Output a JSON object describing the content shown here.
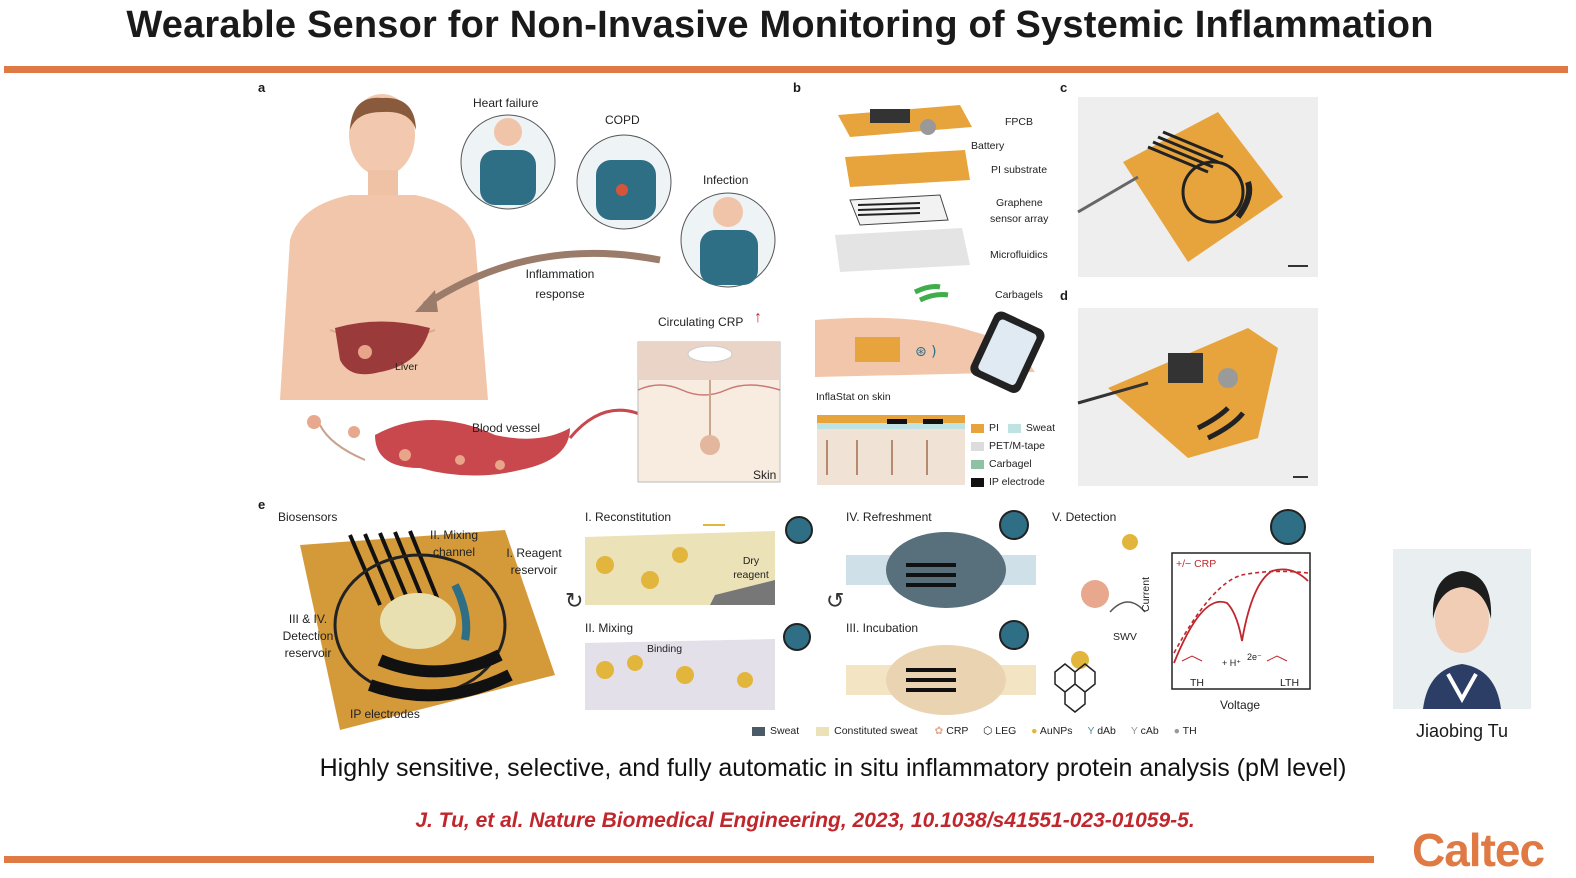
{
  "slide": {
    "title": "Wearable Sensor for Non-Invasive Monitoring of Systemic Inflammation",
    "subtitle": "Highly sensitive, selective, and fully automatic in situ inflammatory protein analysis (pM level)",
    "citation": "J. Tu, et al. Nature Biomedical Engineering, 2023, 10.1038/s41551-023-01059-5.",
    "logo": "Caltec",
    "presenter": "Jiaobing Tu"
  },
  "colors": {
    "accent": "#e07a45",
    "citation": "#c0272d",
    "sensor": "#e8a43c",
    "teal": "#2f6f86"
  },
  "panel_a": {
    "letter": "a",
    "heart_failure": "Heart failure",
    "copd": "COPD",
    "infection": "Infection",
    "inflammation_1": "Inflammation",
    "inflammation_2": "response",
    "liver": "Liver",
    "circulating": "Circulating CRP",
    "blood_vessel": "Blood vessel",
    "skin": "Skin"
  },
  "panel_b": {
    "letter": "b",
    "fpcb": "FPCB",
    "battery": "Battery",
    "pi_substrate": "PI substrate",
    "graphene_1": "Graphene",
    "graphene_2": "sensor array",
    "microfluidics": "Microfluidics",
    "carbagels": "Carbagels",
    "inflastat": "InflaStat on skin",
    "legend": [
      "PI",
      "Sweat",
      "PET/M-tape",
      "Carbagel",
      "IP electrode"
    ]
  },
  "panel_c": {
    "letter": "c"
  },
  "panel_d": {
    "letter": "d"
  },
  "panel_e": {
    "letter": "e",
    "biosensors": "Biosensors",
    "mixing_channel_1": "II. Mixing",
    "mixing_channel_2": "channel",
    "reagent_1": "I. Reagent",
    "reagent_2": "reservoir",
    "detection_1": "III & IV.",
    "detection_2": "Detection",
    "detection_3": "reservoir",
    "ip_electrodes": "IP electrodes",
    "reconstitution": "I. Reconstitution",
    "dry_1": "Dry",
    "dry_2": "reagent",
    "mixing": "II. Mixing",
    "binding": "Binding",
    "refreshment": "IV. Refreshment",
    "incubation": "III. Incubation",
    "detection": "V. Detection",
    "swv": "SWV",
    "crp_curve": "+/− CRP",
    "current": "Current",
    "voltage": "Voltage",
    "th": "TH",
    "lth": "LTH",
    "reaction": "+ H⁺",
    "electrons": "2e⁻",
    "legend": [
      "Sweat",
      "Constituted sweat",
      "CRP",
      "LEG",
      "AuNPs",
      "dAb",
      "cAb",
      "TH"
    ]
  }
}
